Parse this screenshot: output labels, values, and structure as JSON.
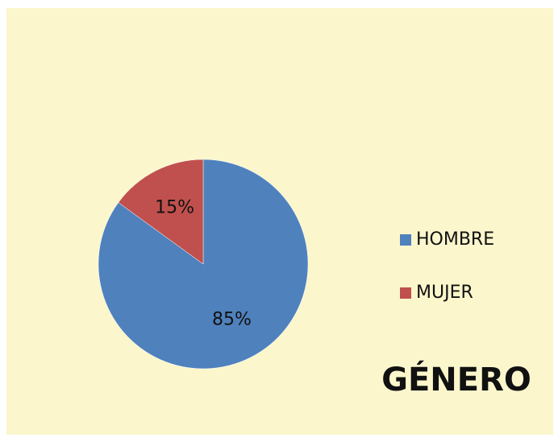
{
  "chart_data": {
    "type": "pie",
    "title": "GÉNERO",
    "categories": [
      "HOMBRE",
      "MUJER"
    ],
    "values": [
      85,
      15
    ],
    "value_labels": [
      "85%",
      "15%"
    ],
    "colors": [
      "#4f81bd",
      "#c0504d"
    ],
    "legend": "right"
  }
}
